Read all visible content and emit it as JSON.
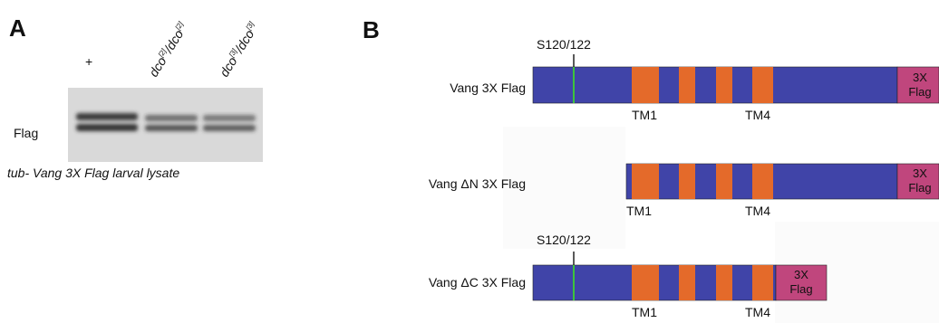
{
  "panel_a": {
    "label": "A",
    "lanes": [
      [
        "+"
      ],
      [
        "dco",
        "[2]",
        "/dco",
        "[2]"
      ],
      [
        "dco",
        "[3]",
        "/dco",
        "[3]"
      ]
    ],
    "blot_label": "Flag",
    "caption": "tub- Vang 3X Flag larval lysate"
  },
  "panel_b": {
    "label": "B",
    "constructs": [
      {
        "name": "Vang 3X Flag",
        "site_label": "S120/122",
        "tm_labels": [
          "TM1",
          "TM4"
        ],
        "tag": [
          "3X",
          "Flag"
        ]
      },
      {
        "name": "Vang ΔN 3X Flag",
        "tm_labels": [
          "TM1",
          "TM4"
        ],
        "tag": [
          "3X",
          "Flag"
        ]
      },
      {
        "name": "Vang ΔC 3X Flag",
        "site_label": "S120/122",
        "tm_labels": [
          "TM1",
          "TM4"
        ],
        "tag": [
          "3X",
          "Flag"
        ]
      }
    ]
  }
}
